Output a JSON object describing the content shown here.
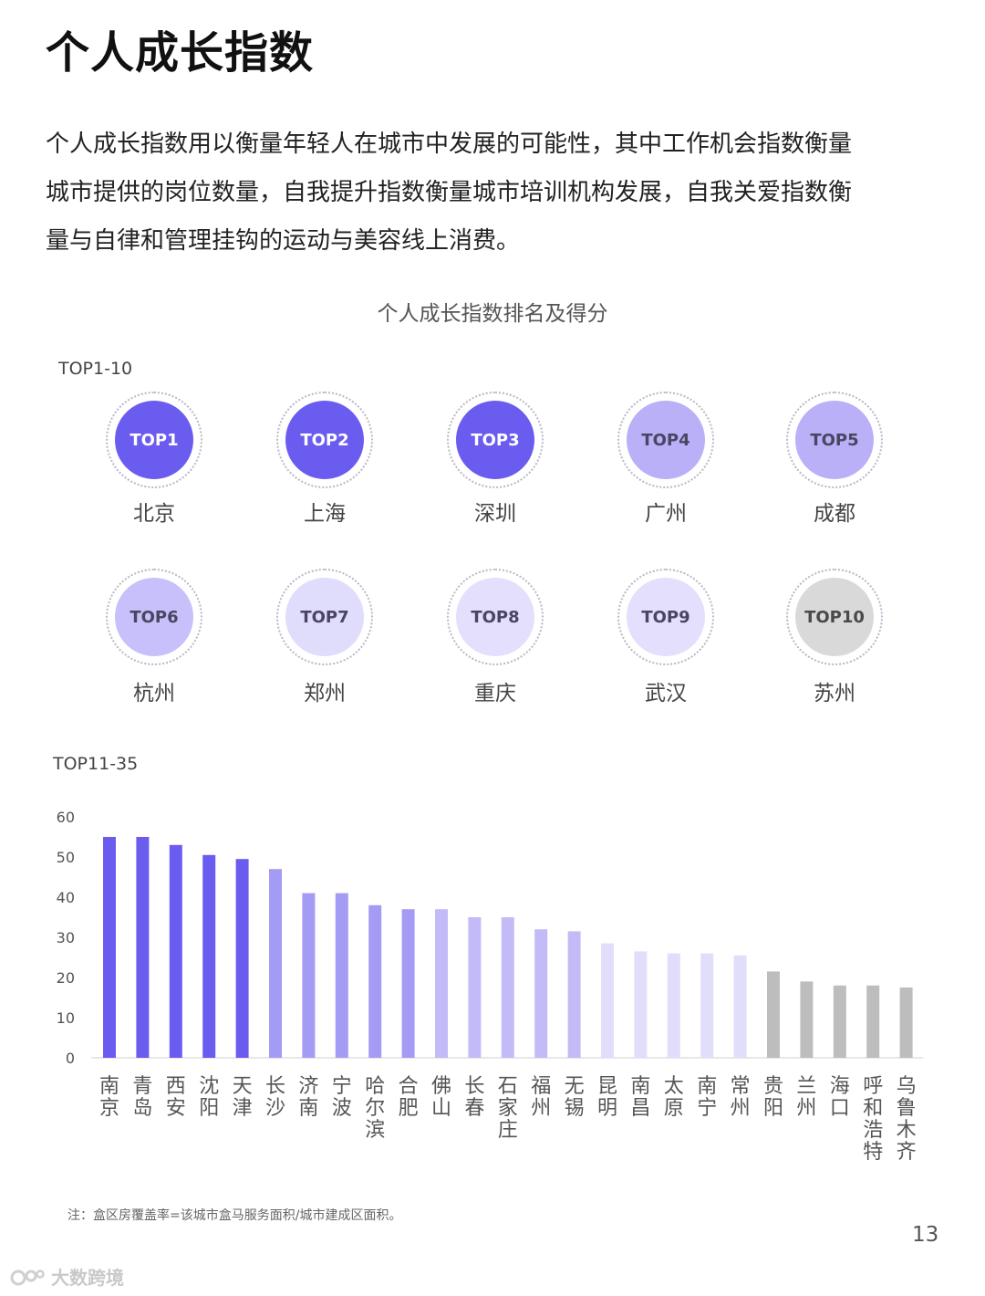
{
  "header": {
    "title": "个人成长指数",
    "intro_lines": [
      "个人成长指数用以衡量年轻人在城市中发展的可能性，其中工作机会指数衡量",
      "城市提供的岗位数量，自我提升指数衡量城市培训机构发展，自我关爱指数衡",
      "量与自律和管理挂钩的运动与美容线上消费。"
    ]
  },
  "chart_title": "个人成长指数排名及得分",
  "top10": {
    "label": "TOP1-10",
    "items": [
      {
        "rank": "TOP1",
        "city": "北京",
        "color": "#6b5cf0",
        "text_color": "#ffffff"
      },
      {
        "rank": "TOP2",
        "city": "上海",
        "color": "#6b5cf0",
        "text_color": "#ffffff"
      },
      {
        "rank": "TOP3",
        "city": "深圳",
        "color": "#6b5cf0",
        "text_color": "#ffffff"
      },
      {
        "rank": "TOP4",
        "city": "广州",
        "color": "#b9b0f8",
        "text_color": "#4a4560"
      },
      {
        "rank": "TOP5",
        "city": "成都",
        "color": "#b9b0f8",
        "text_color": "#4a4560"
      },
      {
        "rank": "TOP6",
        "city": "杭州",
        "color": "#c7c0fa",
        "text_color": "#4a4560"
      },
      {
        "rank": "TOP7",
        "city": "郑州",
        "color": "#e0dcfc",
        "text_color": "#4a4560"
      },
      {
        "rank": "TOP8",
        "city": "重庆",
        "color": "#e3dffc",
        "text_color": "#4a4560"
      },
      {
        "rank": "TOP9",
        "city": "武汉",
        "color": "#e3dffc",
        "text_color": "#4a4560"
      },
      {
        "rank": "TOP10",
        "city": "苏州",
        "color": "#d9d9d9",
        "text_color": "#4a4a4a"
      }
    ]
  },
  "chart_data": {
    "type": "bar",
    "label": "TOP11-35",
    "categories": [
      "南京",
      "青岛",
      "西安",
      "沈阳",
      "天津",
      "长沙",
      "济南",
      "宁波",
      "哈尔滨",
      "合肥",
      "佛山",
      "长春",
      "石家庄",
      "福州",
      "无锡",
      "昆明",
      "南昌",
      "太原",
      "南宁",
      "常州",
      "贵阳",
      "兰州",
      "海口",
      "呼和浩特",
      "乌鲁木齐"
    ],
    "values": [
      55,
      55,
      53,
      50.5,
      49.5,
      47,
      41,
      41,
      38,
      37,
      37,
      35,
      35,
      32,
      31.5,
      28.5,
      26.5,
      26,
      26,
      25.5,
      21.5,
      19,
      18,
      18,
      17.5
    ],
    "colors": [
      "#6b5cf0",
      "#6b5cf0",
      "#6b5cf0",
      "#6b5cf0",
      "#6b5cf0",
      "#a49bf5",
      "#a49bf5",
      "#a49bf5",
      "#a49bf5",
      "#a49bf5",
      "#c2bbf8",
      "#c2bbf8",
      "#c2bbf8",
      "#c2bbf8",
      "#c2bbf8",
      "#e1defb",
      "#e1defb",
      "#e1defb",
      "#e1defb",
      "#e1defb",
      "#bdbdbd",
      "#bdbdbd",
      "#bdbdbd",
      "#bdbdbd",
      "#bdbdbd"
    ],
    "ylim": [
      0,
      60
    ],
    "yticks": [
      0,
      10,
      20,
      30,
      40,
      50,
      60
    ],
    "grid": false
  },
  "footer": {
    "note": "注：盒区房覆盖率=该城市盒马服务面积/城市建成区面积。",
    "page_number": "13",
    "watermark": "大数跨境"
  }
}
